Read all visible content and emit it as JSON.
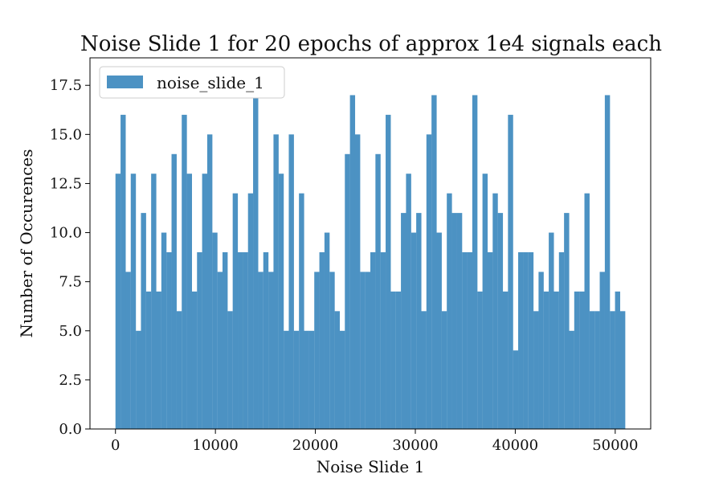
{
  "chart_data": {
    "type": "bar",
    "title": "Noise Slide 1 for 20 epochs of approx 1e4 signals each",
    "xlabel": "Noise Slide 1",
    "ylabel": "Number of Occurences",
    "xlim": [
      -2550,
      53550
    ],
    "ylim": [
      0,
      18.9
    ],
    "x_ticks": [
      0,
      10000,
      20000,
      30000,
      40000,
      50000
    ],
    "y_ticks": [
      0.0,
      2.5,
      5.0,
      7.5,
      10.0,
      12.5,
      15.0,
      17.5
    ],
    "x_tick_labels": [
      "0",
      "10000",
      "20000",
      "30000",
      "40000",
      "50000"
    ],
    "y_tick_labels": [
      "0.0",
      "2.5",
      "5.0",
      "7.5",
      "10.0",
      "12.5",
      "15.0",
      "17.5"
    ],
    "bin_width": 510,
    "bin_starts": [
      0,
      510,
      1020,
      1530,
      2040,
      2550,
      3060,
      3570,
      4080,
      4590,
      5100,
      5610,
      6120,
      6630,
      7140,
      7650,
      8160,
      8670,
      9180,
      9690,
      10200,
      10710,
      11220,
      11730,
      12240,
      12750,
      13260,
      13770,
      14280,
      14790,
      15300,
      15810,
      16320,
      16830,
      17340,
      17850,
      18360,
      18870,
      19380,
      19890,
      20400,
      20910,
      21420,
      21930,
      22440,
      22950,
      23460,
      23970,
      24480,
      24990,
      25500,
      26010,
      26520,
      27030,
      27540,
      28050,
      28560,
      29070,
      29580,
      30090,
      30600,
      31110,
      31620,
      32130,
      32640,
      33150,
      33660,
      34170,
      34680,
      35190,
      35700,
      36210,
      36720,
      37230,
      37740,
      38250,
      38760,
      39270,
      39780,
      40290,
      40800,
      41310,
      41820,
      42330,
      42840,
      43350,
      43860,
      44370,
      44880,
      45390,
      45900,
      46410,
      46920,
      47430,
      47940,
      48450,
      48960,
      49470,
      49980,
      50490
    ],
    "values": [
      13,
      16,
      8,
      13,
      5,
      11,
      7,
      13,
      7,
      10,
      9,
      14,
      6,
      16,
      13,
      7,
      9,
      13,
      15,
      10,
      8,
      9,
      6,
      12,
      9,
      9,
      12,
      18,
      8,
      9,
      8,
      15,
      13,
      5,
      15,
      5,
      12,
      5,
      5,
      8,
      9,
      10,
      8,
      6,
      5,
      14,
      17,
      15,
      8,
      8,
      9,
      14,
      9,
      16,
      7,
      7,
      11,
      13,
      10,
      11,
      6,
      15,
      17,
      10,
      6,
      12,
      11,
      11,
      9,
      9,
      17,
      7,
      13,
      9,
      12,
      11,
      7,
      16,
      4,
      9,
      9,
      9,
      6,
      8,
      7,
      10,
      7,
      9,
      11,
      5,
      7,
      7,
      12,
      6,
      6,
      8,
      17,
      6,
      7,
      6
    ],
    "series": [
      {
        "name": "noise_slide_1"
      }
    ],
    "grid": false,
    "legend_position": "top-left",
    "color": "#4c92c3"
  }
}
